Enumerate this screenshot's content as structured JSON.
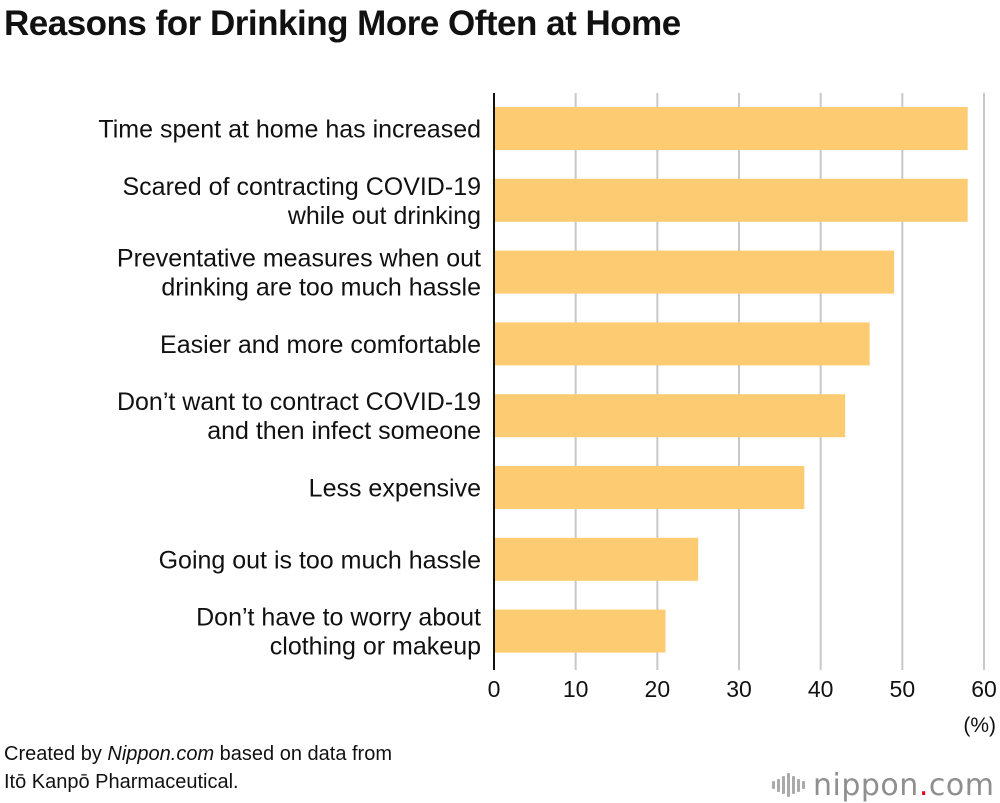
{
  "title": "Reasons for Drinking More Often at Home",
  "source": {
    "prefix": "Created by ",
    "site": "Nippon.com",
    "suffix": " based on data from",
    "line2": "Itō Kanpō Pharmaceutical."
  },
  "logo": {
    "name": "nippon",
    "dot": ".",
    "tld": "com"
  },
  "chart_data": {
    "type": "bar",
    "orientation": "horizontal",
    "title": "Reasons for Drinking More Often at Home",
    "categories": [
      [
        "Time spent at home has increased"
      ],
      [
        "Scared of contracting COVID-19",
        "while out drinking"
      ],
      [
        "Preventative measures when out",
        "drinking are too much hassle"
      ],
      [
        "Easier and more comfortable"
      ],
      [
        "Don’t want to contract COVID-19",
        "and then infect someone"
      ],
      [
        "Less expensive"
      ],
      [
        "Going out is too much hassle"
      ],
      [
        "Don’t have to worry about",
        "clothing or makeup"
      ]
    ],
    "values": [
      58,
      58,
      49,
      46,
      43,
      38,
      25,
      21
    ],
    "xlim": [
      0,
      60
    ],
    "xticks": [
      0,
      10,
      20,
      30,
      40,
      50,
      60
    ],
    "unit_label": "(%)",
    "bar_color": "#fccb72",
    "grid": true
  }
}
